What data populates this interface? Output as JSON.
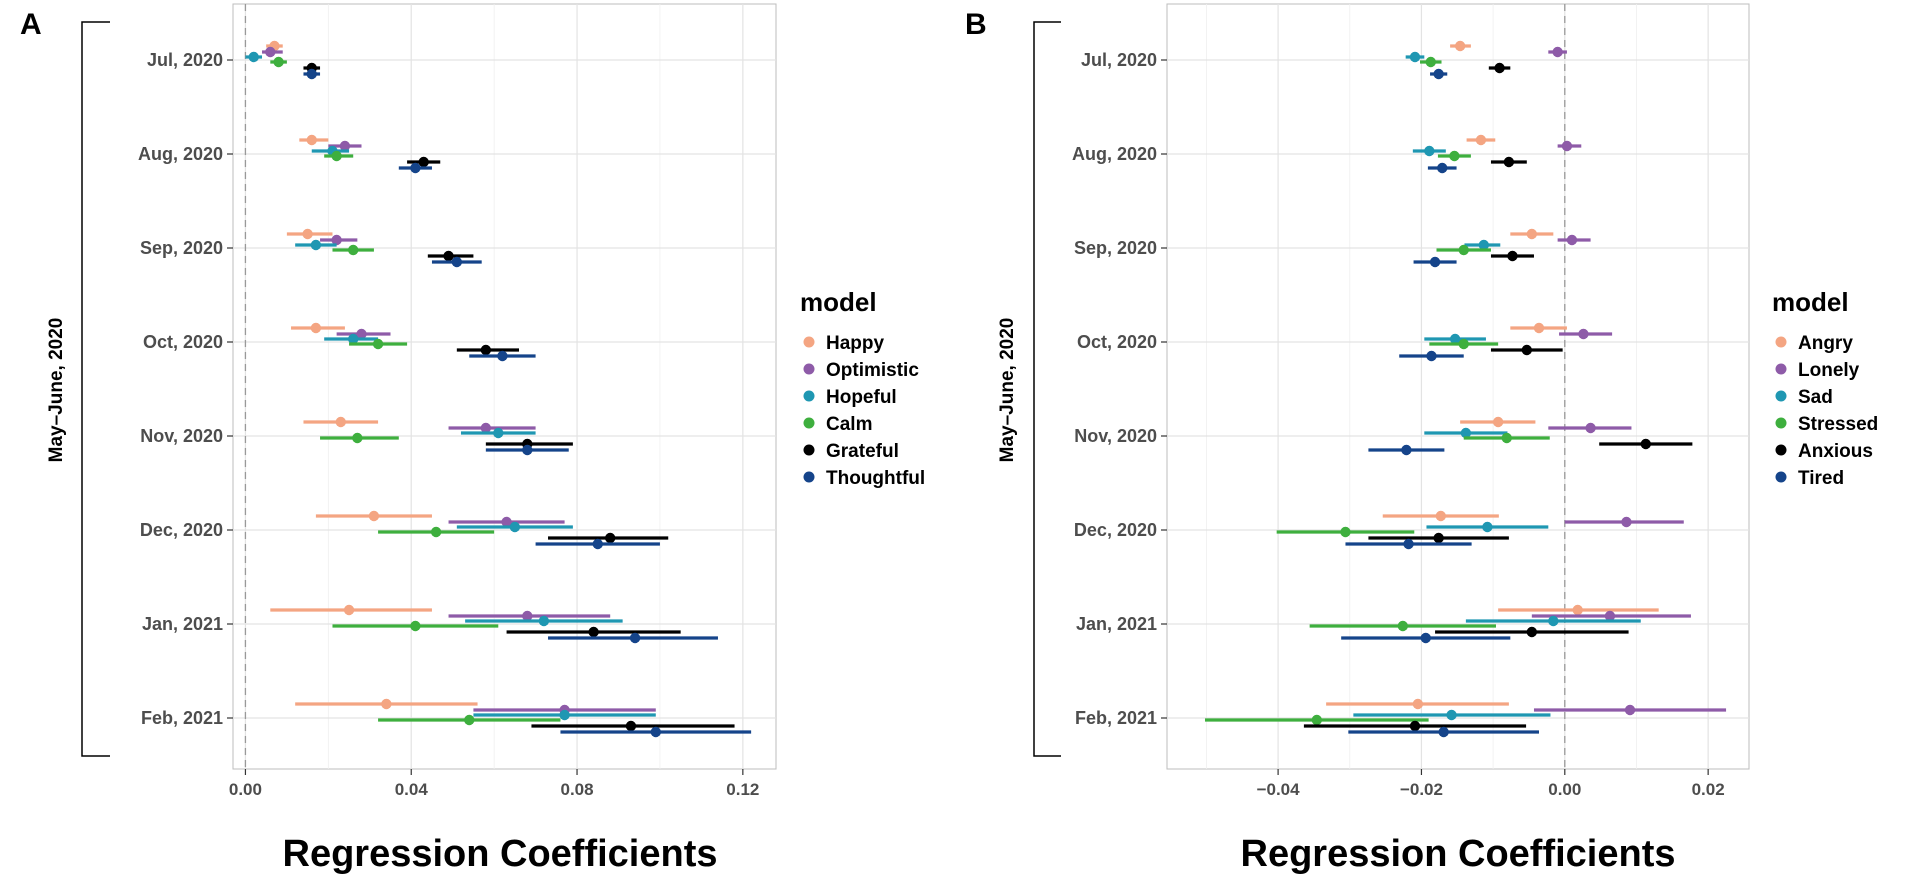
{
  "chart_data": [
    {
      "panel": "A",
      "type": "forest",
      "xlabel": "Regression Coefficients",
      "bracket_label": "May–June, 2020",
      "xlim": [
        -0.003,
        0.128
      ],
      "xticks": [
        "0.00",
        "0.04",
        "0.08",
        "0.12"
      ],
      "xtick_values": [
        0,
        0.04,
        0.08,
        0.12
      ],
      "reference_line": 0,
      "categories": [
        "Jul, 2020",
        "Aug, 2020",
        "Sep, 2020",
        "Oct, 2020",
        "Nov, 2020",
        "Dec, 2020",
        "Jan, 2021",
        "Feb, 2021"
      ],
      "legend_title": "model",
      "series": [
        {
          "name": "Happy",
          "color": "#F4A582",
          "estimates": [
            0.007,
            0.016,
            0.015,
            0.017,
            0.023,
            0.031,
            0.025,
            0.034
          ],
          "lower": [
            0.005,
            0.013,
            0.01,
            0.011,
            0.014,
            0.017,
            0.006,
            0.012
          ],
          "upper": [
            0.009,
            0.02,
            0.021,
            0.024,
            0.032,
            0.045,
            0.045,
            0.056
          ]
        },
        {
          "name": "Optimistic",
          "color": "#8E5BA8",
          "estimates": [
            0.006,
            0.024,
            0.022,
            0.028,
            0.058,
            0.063,
            0.068,
            0.077
          ],
          "lower": [
            0.004,
            0.02,
            0.018,
            0.022,
            0.049,
            0.049,
            0.049,
            0.055
          ],
          "upper": [
            0.009,
            0.028,
            0.027,
            0.035,
            0.07,
            0.077,
            0.088,
            0.099
          ]
        },
        {
          "name": "Hopeful",
          "color": "#1F97B2",
          "estimates": [
            0.002,
            0.021,
            0.017,
            0.026,
            0.061,
            0.065,
            0.072,
            0.077
          ],
          "lower": [
            0.0,
            0.016,
            0.012,
            0.019,
            0.052,
            0.051,
            0.053,
            0.055
          ],
          "upper": [
            0.004,
            0.025,
            0.022,
            0.032,
            0.07,
            0.079,
            0.091,
            0.099
          ]
        },
        {
          "name": "Calm",
          "color": "#3EAF3E",
          "estimates": [
            0.008,
            0.022,
            0.026,
            0.032,
            0.027,
            0.046,
            0.041,
            0.054
          ],
          "lower": [
            0.006,
            0.019,
            0.021,
            0.025,
            0.018,
            0.032,
            0.021,
            0.032
          ],
          "upper": [
            0.01,
            0.026,
            0.031,
            0.039,
            0.037,
            0.06,
            0.061,
            0.076
          ]
        },
        {
          "name": "Grateful",
          "color": "#000000",
          "estimates": [
            0.016,
            0.043,
            0.049,
            0.058,
            0.068,
            0.088,
            0.084,
            0.093
          ],
          "lower": [
            0.014,
            0.039,
            0.044,
            0.051,
            0.058,
            0.073,
            0.063,
            0.069
          ],
          "upper": [
            0.018,
            0.047,
            0.055,
            0.066,
            0.079,
            0.102,
            0.105,
            0.118
          ]
        },
        {
          "name": "Thoughtful",
          "color": "#15448A",
          "estimates": [
            0.016,
            0.041,
            0.051,
            0.062,
            0.068,
            0.085,
            0.094,
            0.099
          ],
          "lower": [
            0.014,
            0.037,
            0.045,
            0.054,
            0.058,
            0.07,
            0.073,
            0.076
          ],
          "upper": [
            0.018,
            0.045,
            0.057,
            0.07,
            0.078,
            0.1,
            0.114,
            0.122
          ]
        }
      ]
    },
    {
      "panel": "B",
      "type": "forest",
      "xlabel": "Regression Coefficients",
      "bracket_label": "May–June, 2020",
      "xlim": [
        -0.0555,
        0.0257
      ],
      "xticks": [
        "−0.04",
        "−0.02",
        "0.00",
        "0.02"
      ],
      "xtick_values": [
        -0.04,
        -0.02,
        0,
        0.02
      ],
      "reference_line": 0,
      "categories": [
        "Jul, 2020",
        "Aug, 2020",
        "Sep, 2020",
        "Oct, 2020",
        "Nov, 2020",
        "Dec, 2020",
        "Jan, 2021",
        "Feb, 2021"
      ],
      "legend_title": "model",
      "series": [
        {
          "name": "Angry",
          "color": "#F4A582",
          "estimates": [
            -0.0146,
            -0.0117,
            -0.0046,
            -0.0036,
            -0.0093,
            -0.0173,
            0.0018,
            -0.0205
          ],
          "lower": [
            -0.016,
            -0.0137,
            -0.0076,
            -0.0076,
            -0.0146,
            -0.0254,
            -0.0093,
            -0.0333
          ],
          "upper": [
            -0.0131,
            -0.0097,
            -0.0016,
            0.0003,
            -0.0041,
            -0.0092,
            0.0131,
            -0.0078
          ]
        },
        {
          "name": "Lonely",
          "color": "#8E5BA8",
          "estimates": [
            -0.001,
            0.0003,
            0.001,
            0.0026,
            0.0036,
            0.0086,
            0.0063,
            0.0091
          ],
          "lower": [
            -0.0023,
            -0.001,
            -0.001,
            -0.0008,
            -0.0023,
            0.0,
            -0.0046,
            -0.0043
          ],
          "upper": [
            0.0003,
            0.0023,
            0.0036,
            0.0066,
            0.0093,
            0.0166,
            0.0176,
            0.0225
          ]
        },
        {
          "name": "Sad",
          "color": "#1F97B2",
          "estimates": [
            -0.0209,
            -0.0189,
            -0.0113,
            -0.0153,
            -0.0138,
            -0.0108,
            -0.0016,
            -0.0158
          ],
          "lower": [
            -0.0222,
            -0.0212,
            -0.014,
            -0.0196,
            -0.0196,
            -0.0193,
            -0.0138,
            -0.0295
          ],
          "upper": [
            -0.0196,
            -0.0166,
            -0.009,
            -0.011,
            -0.008,
            -0.0023,
            0.0106,
            -0.002
          ]
        },
        {
          "name": "Stressed",
          "color": "#3EAF3E",
          "estimates": [
            -0.0187,
            -0.0154,
            -0.0141,
            -0.0141,
            -0.0081,
            -0.0306,
            -0.0226,
            -0.0346
          ],
          "lower": [
            -0.0202,
            -0.0177,
            -0.0179,
            -0.0189,
            -0.0141,
            -0.0402,
            -0.0356,
            -0.0502
          ],
          "upper": [
            -0.0172,
            -0.0131,
            -0.0103,
            -0.0093,
            -0.0021,
            -0.021,
            -0.0096,
            -0.019
          ]
        },
        {
          "name": "Anxious",
          "color": "#000000",
          "estimates": [
            -0.0091,
            -0.0078,
            -0.0073,
            -0.0053,
            0.0113,
            -0.0176,
            -0.0046,
            -0.0209
          ],
          "lower": [
            -0.0106,
            -0.0103,
            -0.0103,
            -0.0103,
            0.0048,
            -0.0274,
            -0.0181,
            -0.0364
          ],
          "upper": [
            -0.0076,
            -0.0053,
            -0.0043,
            -0.0003,
            0.0178,
            -0.0078,
            0.0089,
            -0.0054
          ]
        },
        {
          "name": "Tired",
          "color": "#15448A",
          "estimates": [
            -0.0176,
            -0.0171,
            -0.0181,
            -0.0186,
            -0.0221,
            -0.0218,
            -0.0194,
            -0.0169
          ],
          "lower": [
            -0.0188,
            -0.0191,
            -0.0211,
            -0.0231,
            -0.0274,
            -0.0306,
            -0.0312,
            -0.0302
          ],
          "upper": [
            -0.0164,
            -0.0151,
            -0.0151,
            -0.0141,
            -0.0168,
            -0.013,
            -0.0076,
            -0.0036
          ]
        }
      ]
    }
  ]
}
